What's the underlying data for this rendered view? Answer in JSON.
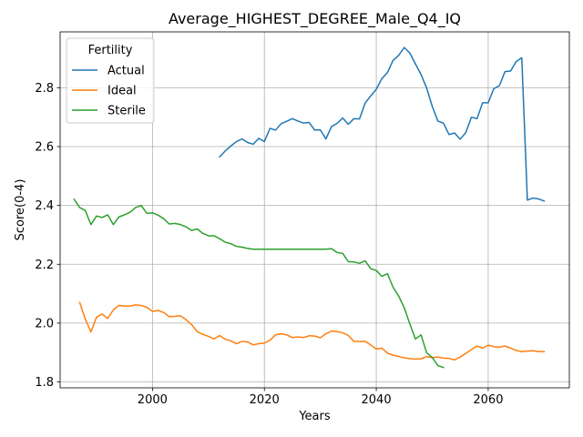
{
  "chart_data": {
    "type": "line",
    "title": "Average_HIGHEST_DEGREE_Male_Q4_IQ",
    "xlabel": "Years",
    "ylabel": "Score(0-4)",
    "xlim": [
      1983.5,
      2074.5
    ],
    "ylim": [
      1.78,
      2.99
    ],
    "xticks": [
      2000,
      2020,
      2040,
      2060
    ],
    "yticks": [
      1.8,
      2.0,
      2.2,
      2.4,
      2.6,
      2.8
    ],
    "grid": true,
    "legend": {
      "title": "Fertility",
      "placement": "top-left"
    },
    "series": [
      {
        "name": "Actual",
        "color": "#1f77b4",
        "points": [
          [
            2012,
            2.565
          ],
          [
            2013,
            2.585
          ],
          [
            2014,
            2.602
          ],
          [
            2015,
            2.617
          ],
          [
            2016,
            2.626
          ],
          [
            2017,
            2.614
          ],
          [
            2018,
            2.608
          ],
          [
            2019,
            2.628
          ],
          [
            2020,
            2.617
          ],
          [
            2021,
            2.662
          ],
          [
            2022,
            2.656
          ],
          [
            2023,
            2.678
          ],
          [
            2024,
            2.686
          ],
          [
            2025,
            2.695
          ],
          [
            2026,
            2.687
          ],
          [
            2027,
            2.68
          ],
          [
            2028,
            2.682
          ],
          [
            2029,
            2.656
          ],
          [
            2030,
            2.657
          ],
          [
            2031,
            2.626
          ],
          [
            2032,
            2.668
          ],
          [
            2033,
            2.679
          ],
          [
            2034,
            2.697
          ],
          [
            2035,
            2.676
          ],
          [
            2036,
            2.695
          ],
          [
            2037,
            2.694
          ],
          [
            2038,
            2.748
          ],
          [
            2039,
            2.772
          ],
          [
            2040,
            2.795
          ],
          [
            2041,
            2.831
          ],
          [
            2042,
            2.852
          ],
          [
            2043,
            2.893
          ],
          [
            2044,
            2.91
          ],
          [
            2045,
            2.937
          ],
          [
            2046,
            2.918
          ],
          [
            2047,
            2.881
          ],
          [
            2048,
            2.845
          ],
          [
            2049,
            2.799
          ],
          [
            2050,
            2.737
          ],
          [
            2051,
            2.687
          ],
          [
            2052,
            2.68
          ],
          [
            2053,
            2.641
          ],
          [
            2054,
            2.646
          ],
          [
            2055,
            2.625
          ],
          [
            2056,
            2.648
          ],
          [
            2057,
            2.7
          ],
          [
            2058,
            2.695
          ],
          [
            2059,
            2.749
          ],
          [
            2060,
            2.749
          ],
          [
            2061,
            2.797
          ],
          [
            2062,
            2.807
          ],
          [
            2063,
            2.855
          ],
          [
            2064,
            2.857
          ],
          [
            2065,
            2.889
          ],
          [
            2066,
            2.902
          ],
          [
            2067,
            2.418
          ],
          [
            2068,
            2.425
          ],
          [
            2069,
            2.422
          ],
          [
            2070,
            2.415
          ]
        ]
      },
      {
        "name": "Ideal",
        "color": "#ff7f0e",
        "points": [
          [
            1987,
            2.07
          ],
          [
            1988,
            2.014
          ],
          [
            1989,
            1.97
          ],
          [
            1990,
            2.02
          ],
          [
            1991,
            2.031
          ],
          [
            1992,
            2.016
          ],
          [
            1993,
            2.045
          ],
          [
            1994,
            2.06
          ],
          [
            1995,
            2.058
          ],
          [
            1996,
            2.058
          ],
          [
            1997,
            2.062
          ],
          [
            1998,
            2.06
          ],
          [
            1999,
            2.054
          ],
          [
            2000,
            2.04
          ],
          [
            2001,
            2.043
          ],
          [
            2002,
            2.036
          ],
          [
            2003,
            2.022
          ],
          [
            2004,
            2.023
          ],
          [
            2005,
            2.025
          ],
          [
            2006,
            2.012
          ],
          [
            2007,
            1.995
          ],
          [
            2008,
            1.971
          ],
          [
            2009,
            1.962
          ],
          [
            2010,
            1.955
          ],
          [
            2011,
            1.946
          ],
          [
            2012,
            1.958
          ],
          [
            2013,
            1.945
          ],
          [
            2014,
            1.94
          ],
          [
            2015,
            1.93
          ],
          [
            2016,
            1.938
          ],
          [
            2017,
            1.936
          ],
          [
            2018,
            1.926
          ],
          [
            2019,
            1.93
          ],
          [
            2020,
            1.932
          ],
          [
            2021,
            1.942
          ],
          [
            2022,
            1.96
          ],
          [
            2023,
            1.964
          ],
          [
            2024,
            1.96
          ],
          [
            2025,
            1.951
          ],
          [
            2026,
            1.953
          ],
          [
            2027,
            1.951
          ],
          [
            2028,
            1.957
          ],
          [
            2029,
            1.956
          ],
          [
            2030,
            1.95
          ],
          [
            2031,
            1.964
          ],
          [
            2032,
            1.973
          ],
          [
            2033,
            1.971
          ],
          [
            2034,
            1.967
          ],
          [
            2035,
            1.958
          ],
          [
            2036,
            1.938
          ],
          [
            2037,
            1.938
          ],
          [
            2038,
            1.938
          ],
          [
            2039,
            1.926
          ],
          [
            2040,
            1.912
          ],
          [
            2041,
            1.915
          ],
          [
            2042,
            1.898
          ],
          [
            2043,
            1.891
          ],
          [
            2044,
            1.887
          ],
          [
            2045,
            1.882
          ],
          [
            2046,
            1.879
          ],
          [
            2047,
            1.878
          ],
          [
            2048,
            1.879
          ],
          [
            2049,
            1.886
          ],
          [
            2050,
            1.883
          ],
          [
            2051,
            1.885
          ],
          [
            2052,
            1.881
          ],
          [
            2053,
            1.88
          ],
          [
            2054,
            1.875
          ],
          [
            2055,
            1.885
          ],
          [
            2056,
            1.897
          ],
          [
            2057,
            1.91
          ],
          [
            2058,
            1.922
          ],
          [
            2059,
            1.915
          ],
          [
            2060,
            1.925
          ],
          [
            2061,
            1.92
          ],
          [
            2062,
            1.918
          ],
          [
            2063,
            1.922
          ],
          [
            2064,
            1.915
          ],
          [
            2065,
            1.907
          ],
          [
            2066,
            1.903
          ],
          [
            2067,
            1.905
          ],
          [
            2068,
            1.906
          ],
          [
            2069,
            1.903
          ],
          [
            2070,
            1.903
          ]
        ]
      },
      {
        "name": "Sterile",
        "color": "#2ca02c",
        "points": [
          [
            1986,
            2.421
          ],
          [
            1987,
            2.393
          ],
          [
            1988,
            2.383
          ],
          [
            1989,
            2.335
          ],
          [
            1990,
            2.364
          ],
          [
            1991,
            2.359
          ],
          [
            1992,
            2.368
          ],
          [
            1993,
            2.335
          ],
          [
            1994,
            2.361
          ],
          [
            1995,
            2.368
          ],
          [
            1996,
            2.377
          ],
          [
            1997,
            2.393
          ],
          [
            1998,
            2.4
          ],
          [
            1999,
            2.373
          ],
          [
            2000,
            2.375
          ],
          [
            2001,
            2.367
          ],
          [
            2002,
            2.355
          ],
          [
            2003,
            2.337
          ],
          [
            2004,
            2.339
          ],
          [
            2005,
            2.335
          ],
          [
            2006,
            2.327
          ],
          [
            2007,
            2.315
          ],
          [
            2008,
            2.32
          ],
          [
            2009,
            2.305
          ],
          [
            2010,
            2.297
          ],
          [
            2011,
            2.297
          ],
          [
            2012,
            2.287
          ],
          [
            2013,
            2.275
          ],
          [
            2014,
            2.27
          ],
          [
            2015,
            2.261
          ],
          [
            2016,
            2.258
          ],
          [
            2017,
            2.254
          ],
          [
            2018,
            2.251
          ],
          [
            2019,
            2.251
          ],
          [
            2020,
            2.251
          ],
          [
            2021,
            2.251
          ],
          [
            2022,
            2.251
          ],
          [
            2023,
            2.251
          ],
          [
            2024,
            2.251
          ],
          [
            2025,
            2.251
          ],
          [
            2026,
            2.251
          ],
          [
            2027,
            2.251
          ],
          [
            2028,
            2.251
          ],
          [
            2029,
            2.251
          ],
          [
            2030,
            2.251
          ],
          [
            2031,
            2.251
          ],
          [
            2032,
            2.253
          ],
          [
            2033,
            2.24
          ],
          [
            2034,
            2.237
          ],
          [
            2035,
            2.209
          ],
          [
            2036,
            2.208
          ],
          [
            2037,
            2.203
          ],
          [
            2038,
            2.212
          ],
          [
            2039,
            2.185
          ],
          [
            2040,
            2.179
          ],
          [
            2041,
            2.159
          ],
          [
            2042,
            2.168
          ],
          [
            2043,
            2.122
          ],
          [
            2044,
            2.092
          ],
          [
            2045,
            2.052
          ],
          [
            2046,
            1.997
          ],
          [
            2047,
            1.946
          ],
          [
            2048,
            1.96
          ],
          [
            2049,
            1.899
          ],
          [
            2050,
            1.883
          ],
          [
            2051,
            1.856
          ],
          [
            2052,
            1.849
          ]
        ]
      }
    ]
  }
}
